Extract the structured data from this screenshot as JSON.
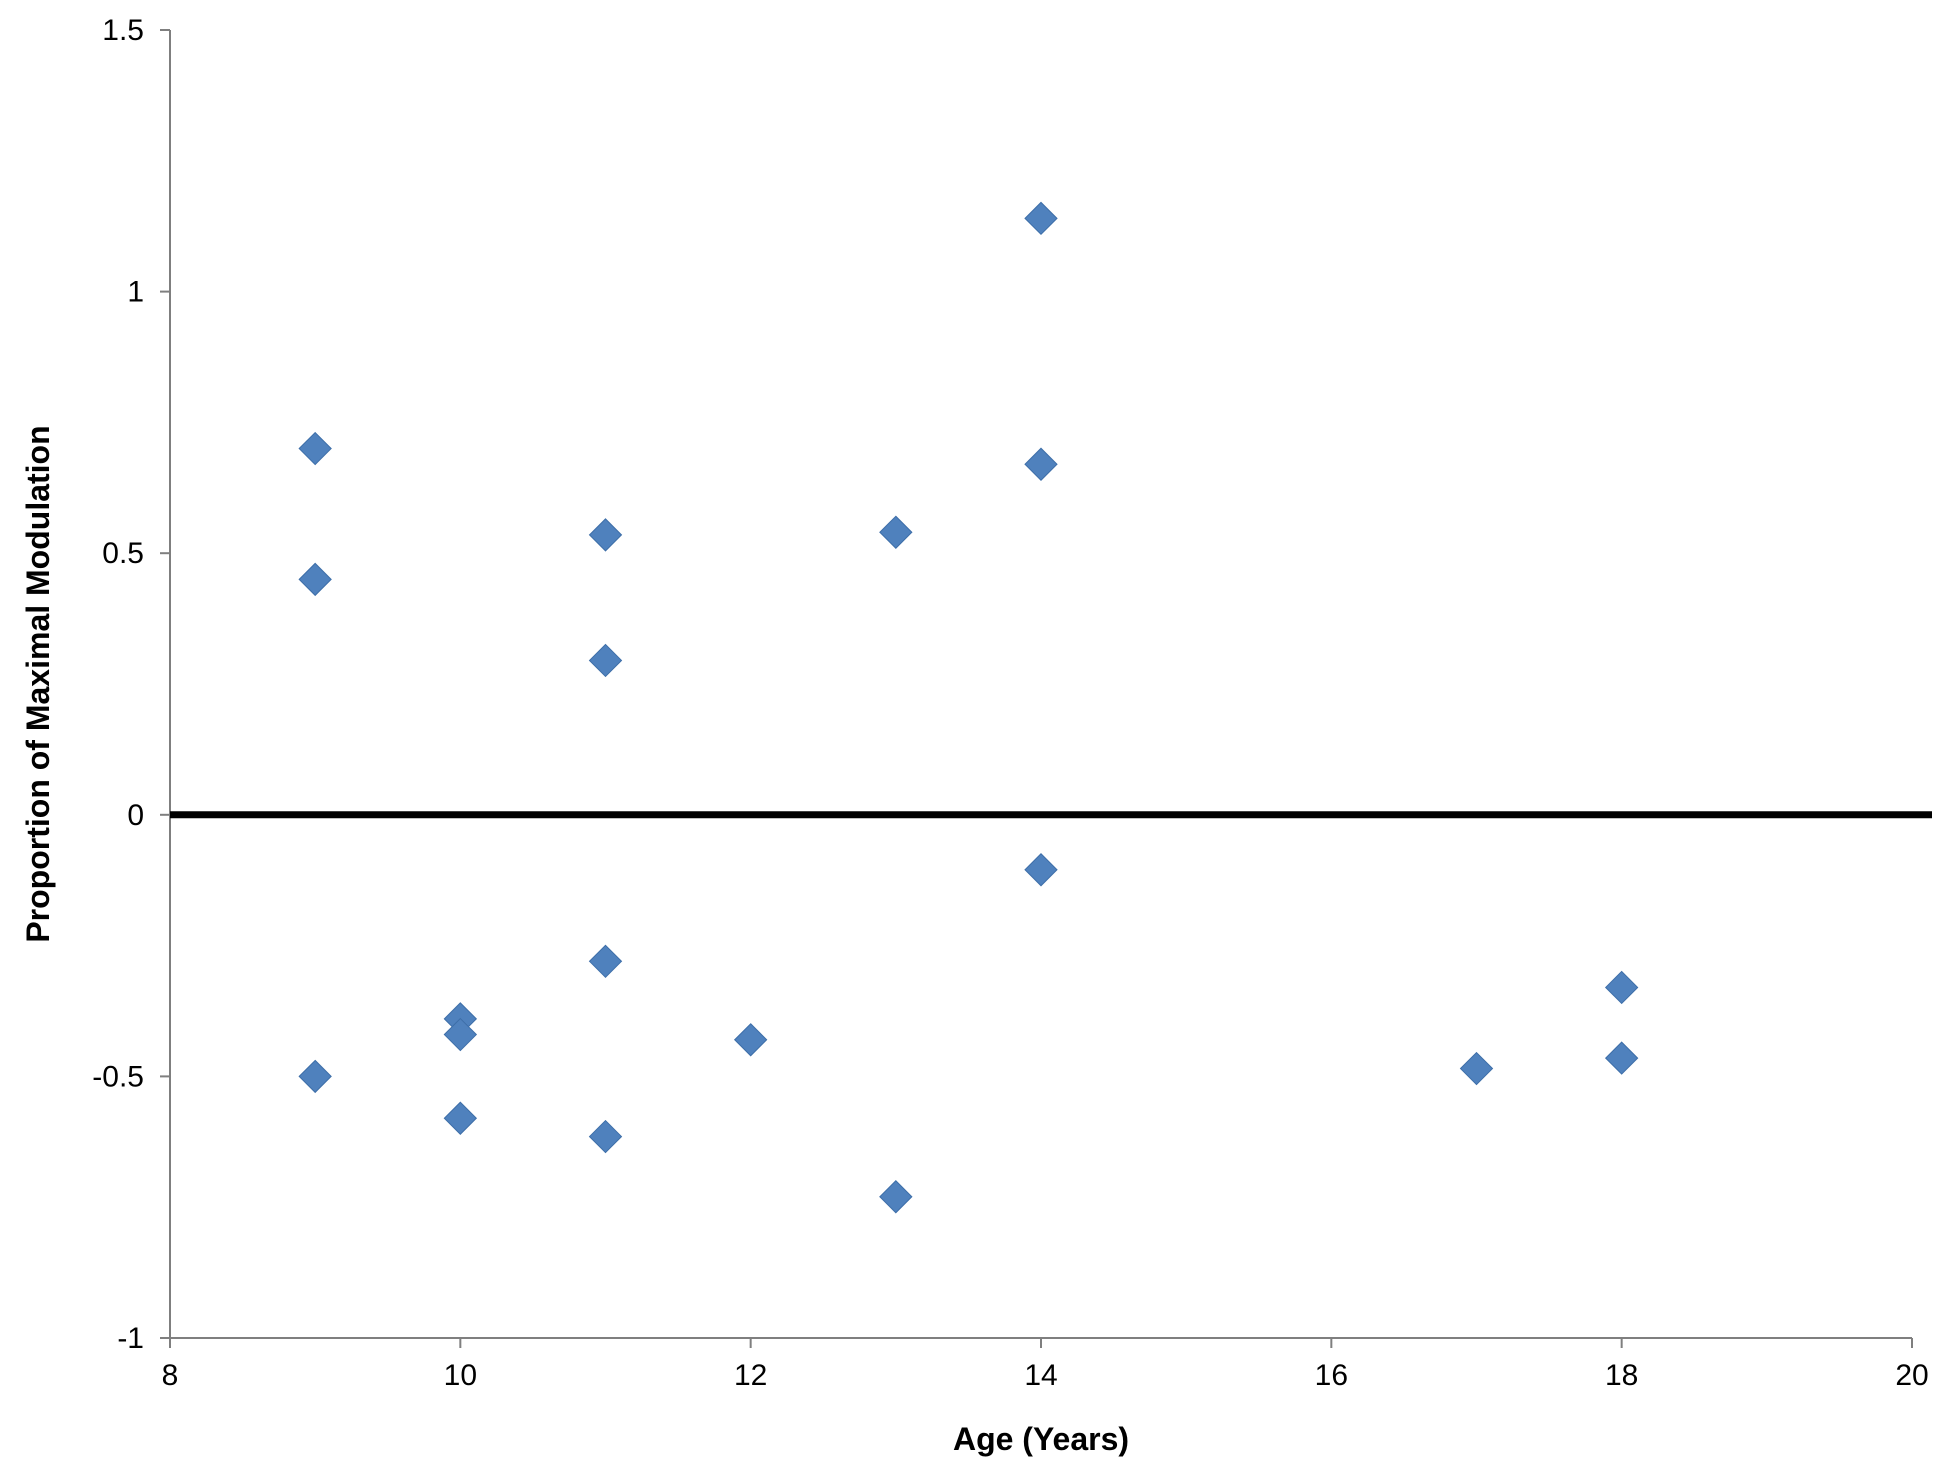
{
  "chart_data": {
    "type": "scatter",
    "title": "",
    "xlabel": "Age (Years)",
    "ylabel": "Proportion of Maximal Modulation",
    "xlim": [
      8,
      20
    ],
    "ylim": [
      -1,
      1.5
    ],
    "xticks": [
      8,
      10,
      12,
      14,
      16,
      18,
      20
    ],
    "yticks": [
      -1,
      -0.5,
      0,
      0.5,
      1,
      1.5
    ],
    "xtick_labels": [
      "8",
      "10",
      "12",
      "14",
      "16",
      "18",
      "20"
    ],
    "ytick_labels": [
      "-1",
      "-0.5",
      "0",
      "0.5",
      "1",
      "1.5"
    ],
    "grid": false,
    "legend": "none",
    "reference_line": {
      "y": 0,
      "color": "#000000"
    },
    "marker": "diamond",
    "marker_color": "#4F81BD",
    "points": [
      {
        "x": 9,
        "y": 0.7
      },
      {
        "x": 9,
        "y": 0.45
      },
      {
        "x": 9,
        "y": -0.5
      },
      {
        "x": 10,
        "y": -0.39
      },
      {
        "x": 10,
        "y": -0.42
      },
      {
        "x": 10,
        "y": -0.58
      },
      {
        "x": 11,
        "y": 0.535
      },
      {
        "x": 11,
        "y": 0.295
      },
      {
        "x": 11,
        "y": -0.28
      },
      {
        "x": 11,
        "y": -0.615
      },
      {
        "x": 12,
        "y": -0.43
      },
      {
        "x": 13,
        "y": 0.54
      },
      {
        "x": 13,
        "y": -0.73
      },
      {
        "x": 14,
        "y": 1.14
      },
      {
        "x": 14,
        "y": 0.67
      },
      {
        "x": 14,
        "y": -0.105
      },
      {
        "x": 17,
        "y": -0.485
      },
      {
        "x": 18,
        "y": -0.33
      },
      {
        "x": 18,
        "y": -0.465
      }
    ]
  }
}
